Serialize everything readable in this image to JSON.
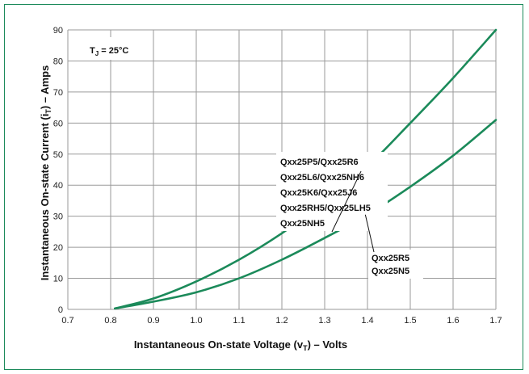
{
  "chart_data": {
    "type": "line",
    "xlabel": "Instantaneous On-state Voltage (vT) – Volts",
    "ylabel": "Instantaneous On-state Current (iT) – Amps",
    "xlim": [
      0.7,
      1.7
    ],
    "ylim": [
      0,
      90
    ],
    "xticks": [
      "0.7",
      "0.8",
      "0.9",
      "1.0",
      "1.1",
      "1.2",
      "1.3",
      "1.4",
      "1.5",
      "1.6",
      "1.7"
    ],
    "yticks": [
      "0",
      "10",
      "20",
      "30",
      "40",
      "50",
      "60",
      "70",
      "80",
      "90"
    ],
    "grid": true,
    "condition_label": "TJ = 25°C",
    "line_color": "#1b8a5a",
    "series": [
      {
        "name": "Qxx25P5/Qxx25R6 Qxx25L6/Qxx25NH6 Qxx25K6/Qxx25J6 Qxx25RH5/Qxx25LH5 Qxx25NH5",
        "labels": [
          "Qxx25P5/Qxx25R6",
          "Qxx25L6/Qxx25NH6",
          "Qxx25K6/Qxx25J6",
          "Qxx25RH5/Qxx25LH5",
          "Qxx25NH5"
        ],
        "x": [
          0.81,
          0.9,
          1.0,
          1.1,
          1.2,
          1.3,
          1.4,
          1.5,
          1.6,
          1.7
        ],
        "y": [
          0.3,
          3.5,
          9,
          16,
          24.5,
          34.5,
          46,
          60,
          74.5,
          90
        ]
      },
      {
        "name": "Qxx25R5 Qxx25N5",
        "labels": [
          "Qxx25R5",
          "Qxx25N5"
        ],
        "x": [
          0.81,
          0.9,
          1.0,
          1.1,
          1.2,
          1.3,
          1.4,
          1.5,
          1.6,
          1.7
        ],
        "y": [
          0.3,
          2.5,
          5.5,
          10,
          16,
          23,
          30.5,
          39.5,
          49.5,
          61
        ]
      }
    ]
  }
}
